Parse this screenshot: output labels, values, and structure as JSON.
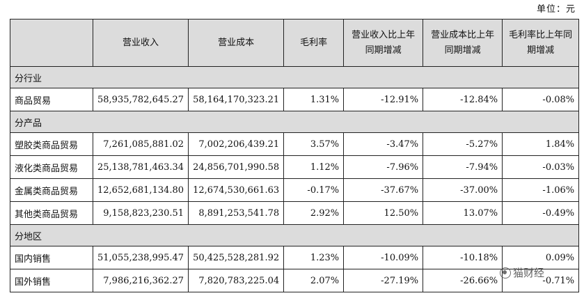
{
  "unit_label": "单位：元",
  "headers": [
    "",
    "营业收入",
    "营业成本",
    "毛利率",
    "营业收入比上年同期增减",
    "营业成本比上年同期增减",
    "毛利率比上年同期增减"
  ],
  "header_lines": [
    [
      ""
    ],
    [
      "营业收入"
    ],
    [
      "营业成本"
    ],
    [
      "毛利率"
    ],
    [
      "营业收入比上年",
      "同期增减"
    ],
    [
      "营业成本比上年",
      "同期增减"
    ],
    [
      "毛利率比上年同",
      "期增减"
    ]
  ],
  "sections": [
    {
      "title": "分行业",
      "rows": [
        [
          "商品贸易",
          "58,935,782,645.27",
          "58,164,170,323.21",
          "1.31%",
          "-12.91%",
          "-12.84%",
          "-0.08%"
        ]
      ]
    },
    {
      "title": "分产品",
      "rows": [
        [
          "塑胶类商品贸易",
          "7,261,085,881.02",
          "7,002,206,439.21",
          "3.57%",
          "-3.47%",
          "-5.27%",
          "1.84%"
        ],
        [
          "液化类商品贸易",
          "25,138,781,463.34",
          "24,856,701,990.58",
          "1.12%",
          "-7.96%",
          "-7.94%",
          "-0.03%"
        ],
        [
          "金属类商品贸易",
          "12,652,681,134.80",
          "12,674,530,661.63",
          "-0.17%",
          "-37.67%",
          "-37.00%",
          "-1.06%"
        ],
        [
          "其他类商品贸易",
          "9,158,823,230.51",
          "8,891,253,541.78",
          "2.92%",
          "12.50%",
          "13.07%",
          "-0.49%"
        ]
      ]
    },
    {
      "title": "分地区",
      "rows": [
        [
          "国内销售",
          "51,055,238,995.47",
          "50,425,528,281.92",
          "1.23%",
          "-10.09%",
          "-10.18%",
          "0.09%"
        ],
        [
          "国外销售",
          "7,986,216,362.27",
          "7,820,783,225.04",
          "2.07%",
          "-27.19%",
          "-26.66%",
          "-0.71%"
        ]
      ]
    }
  ],
  "watermark": {
    "text": "猫财经",
    "icon": "wechat-icon"
  }
}
